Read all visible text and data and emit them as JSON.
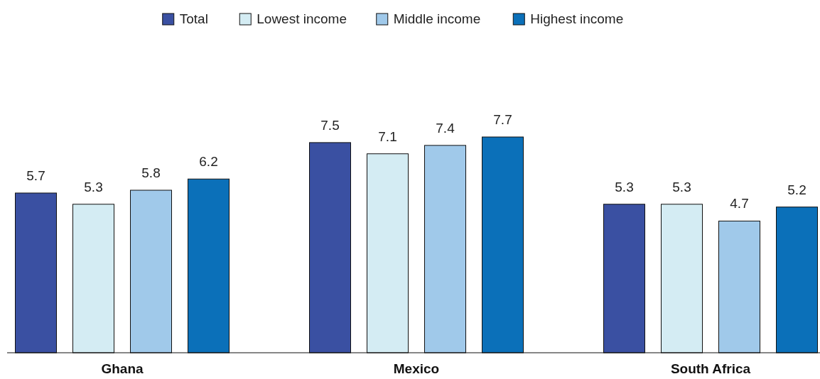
{
  "chart_data": {
    "type": "bar",
    "categories": [
      "Ghana",
      "Mexico",
      "South Africa"
    ],
    "series": [
      {
        "name": "Total",
        "color": "#3a50a2",
        "values": [
          5.7,
          7.5,
          5.3
        ]
      },
      {
        "name": "Lowest income",
        "color": "#d4ecf3",
        "values": [
          5.3,
          7.1,
          5.3
        ]
      },
      {
        "name": "Middle income",
        "color": "#a0c9ea",
        "values": [
          5.8,
          7.4,
          4.7
        ]
      },
      {
        "name": "Highest income",
        "color": "#0b70b9",
        "values": [
          6.2,
          7.7,
          5.2
        ]
      }
    ],
    "data_labels": true,
    "legend": "top"
  }
}
